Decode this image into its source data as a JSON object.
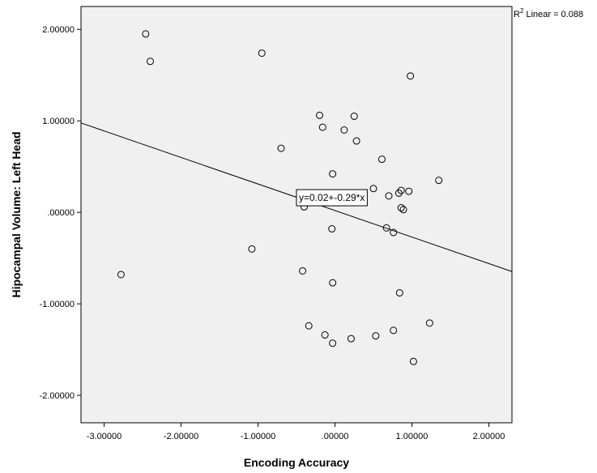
{
  "chart_data": {
    "type": "scatter",
    "title": "",
    "xlabel": "Encoding Accuracy",
    "ylabel": "Hipocampal Volume: Left Head",
    "xlim": [
      -3.3,
      2.3
    ],
    "ylim": [
      -2.3,
      2.25
    ],
    "x_ticks": [
      {
        "value": -3.0,
        "label": "-3.00000"
      },
      {
        "value": -2.0,
        "label": "-2.00000"
      },
      {
        "value": -1.0,
        "label": "-1.00000"
      },
      {
        "value": 0.0,
        "label": ".00000"
      },
      {
        "value": 1.0,
        "label": "1.00000"
      },
      {
        "value": 2.0,
        "label": "2.00000"
      }
    ],
    "y_ticks": [
      {
        "value": 2.0,
        "label": "2.00000"
      },
      {
        "value": 1.0,
        "label": "1.00000"
      },
      {
        "value": 0.0,
        "label": ".00000"
      },
      {
        "value": -1.0,
        "label": "-1.00000"
      },
      {
        "value": -2.0,
        "label": "-2.00000"
      }
    ],
    "grid": false,
    "background_color": "#f0f0f0",
    "marker": "open-circle",
    "points": [
      {
        "x": -2.46,
        "y": 1.95
      },
      {
        "x": -2.4,
        "y": 1.65
      },
      {
        "x": -0.95,
        "y": 1.74
      },
      {
        "x": 0.98,
        "y": 1.49
      },
      {
        "x": -0.2,
        "y": 1.06
      },
      {
        "x": 0.25,
        "y": 1.05
      },
      {
        "x": -0.16,
        "y": 0.93
      },
      {
        "x": 0.12,
        "y": 0.9
      },
      {
        "x": 0.28,
        "y": 0.78
      },
      {
        "x": -0.7,
        "y": 0.7
      },
      {
        "x": 0.61,
        "y": 0.58
      },
      {
        "x": -0.03,
        "y": 0.42
      },
      {
        "x": 1.35,
        "y": 0.35
      },
      {
        "x": 0.5,
        "y": 0.26
      },
      {
        "x": 0.86,
        "y": 0.24
      },
      {
        "x": 0.83,
        "y": 0.21
      },
      {
        "x": 0.96,
        "y": 0.23
      },
      {
        "x": 0.7,
        "y": 0.18
      },
      {
        "x": -0.4,
        "y": 0.06
      },
      {
        "x": 0.86,
        "y": 0.05
      },
      {
        "x": 0.89,
        "y": 0.03
      },
      {
        "x": -0.04,
        "y": -0.18
      },
      {
        "x": 0.67,
        "y": -0.17
      },
      {
        "x": 0.76,
        "y": -0.22
      },
      {
        "x": -1.08,
        "y": -0.4
      },
      {
        "x": -2.78,
        "y": -0.68
      },
      {
        "x": -0.42,
        "y": -0.64
      },
      {
        "x": -0.03,
        "y": -0.77
      },
      {
        "x": 0.84,
        "y": -0.88
      },
      {
        "x": -0.34,
        "y": -1.24
      },
      {
        "x": 1.23,
        "y": -1.21
      },
      {
        "x": 0.76,
        "y": -1.29
      },
      {
        "x": -0.13,
        "y": -1.34
      },
      {
        "x": 0.53,
        "y": -1.35
      },
      {
        "x": 0.21,
        "y": -1.38
      },
      {
        "x": -0.03,
        "y": -1.43
      },
      {
        "x": 1.02,
        "y": -1.63
      }
    ],
    "fit_line": {
      "intercept": 0.02,
      "slope": -0.29,
      "equation_label": "y=0.02+-0.29*x",
      "label_x": -0.5,
      "label_y": 0.16
    },
    "r2": {
      "sup": "2",
      "label_prefix": "R",
      "label_suffix": " Linear = 0.088"
    }
  }
}
